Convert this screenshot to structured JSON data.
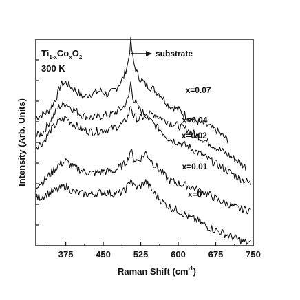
{
  "chart_data": {
    "type": "line",
    "xlabel": "Raman Shift (cm",
    "xlabel_unit_sup": "-1",
    "xlabel_close": ")",
    "ylabel": "Intensity (Arb. Units)",
    "xlim": [
      315,
      750
    ],
    "ylim": [
      0,
      10
    ],
    "x_ticks": [
      375,
      450,
      525,
      600,
      675,
      750
    ],
    "x_tick_labels": [
      "375",
      "450",
      "525",
      "600",
      "675",
      "750"
    ],
    "y_tick_labels_shown": false,
    "grid": false,
    "annotations": {
      "compound_main": "Ti",
      "compound_sub1": "1-x",
      "compound_co": "Co",
      "compound_sub2": "x",
      "compound_o": "O",
      "compound_sub3": "2",
      "temperature": "300 K",
      "substrate_label": "substrate"
    },
    "substrate_peak_x": 505,
    "series": [
      {
        "name": "x=0.07",
        "label_at": [
          640,
          7.4
        ],
        "points": [
          [
            315,
            6.2
          ],
          [
            340,
            6.5
          ],
          [
            355,
            7.1
          ],
          [
            365,
            7.8
          ],
          [
            375,
            7.9
          ],
          [
            390,
            7.6
          ],
          [
            410,
            7.2
          ],
          [
            430,
            7.4
          ],
          [
            445,
            7.5
          ],
          [
            460,
            7.3
          ],
          [
            475,
            7.6
          ],
          [
            490,
            8.1
          ],
          [
            500,
            8.9
          ],
          [
            505,
            9.9
          ],
          [
            510,
            8.9
          ],
          [
            520,
            8.2
          ],
          [
            535,
            7.8
          ],
          [
            550,
            7.6
          ],
          [
            565,
            7.3
          ],
          [
            580,
            6.8
          ],
          [
            600,
            6.6
          ],
          [
            620,
            6.2
          ],
          [
            640,
            6.0
          ],
          [
            660,
            5.8
          ],
          [
            675,
            5.6
          ],
          [
            690,
            5.3
          ],
          [
            700,
            5.1
          ]
        ]
      },
      {
        "name": "x=0.04",
        "label_at": [
          633,
          5.95
        ],
        "points": [
          [
            315,
            5.3
          ],
          [
            330,
            5.5
          ],
          [
            345,
            6.1
          ],
          [
            360,
            6.7
          ],
          [
            375,
            6.9
          ],
          [
            390,
            6.6
          ],
          [
            410,
            6.3
          ],
          [
            430,
            6.2
          ],
          [
            450,
            6.3
          ],
          [
            470,
            6.4
          ],
          [
            490,
            6.7
          ],
          [
            500,
            7.1
          ],
          [
            505,
            7.9
          ],
          [
            510,
            7.1
          ],
          [
            520,
            6.7
          ],
          [
            535,
            6.3
          ],
          [
            550,
            6.4
          ],
          [
            565,
            6.2
          ],
          [
            580,
            6.0
          ],
          [
            600,
            5.8
          ],
          [
            620,
            5.6
          ],
          [
            640,
            5.3
          ],
          [
            660,
            5.0
          ],
          [
            680,
            4.7
          ],
          [
            700,
            4.4
          ],
          [
            720,
            4.1
          ],
          [
            735,
            3.8
          ]
        ]
      },
      {
        "name": "x=0.02",
        "label_at": [
          632,
          5.2
        ],
        "points": [
          [
            315,
            4.8
          ],
          [
            330,
            5.0
          ],
          [
            345,
            5.6
          ],
          [
            360,
            6.0
          ],
          [
            375,
            6.2
          ],
          [
            390,
            5.9
          ],
          [
            410,
            5.6
          ],
          [
            430,
            5.5
          ],
          [
            450,
            5.6
          ],
          [
            470,
            5.7
          ],
          [
            490,
            5.9
          ],
          [
            500,
            6.3
          ],
          [
            505,
            6.8
          ],
          [
            510,
            6.3
          ],
          [
            520,
            6.1
          ],
          [
            535,
            6.3
          ],
          [
            550,
            5.9
          ],
          [
            565,
            5.6
          ],
          [
            580,
            5.2
          ],
          [
            600,
            5.0
          ],
          [
            620,
            4.8
          ],
          [
            640,
            4.5
          ],
          [
            660,
            4.2
          ],
          [
            680,
            3.9
          ],
          [
            700,
            3.6
          ],
          [
            720,
            3.3
          ],
          [
            745,
            3.0
          ]
        ]
      },
      {
        "name": "x=0.01",
        "label_at": [
          633,
          3.7
        ],
        "points": [
          [
            315,
            2.9
          ],
          [
            330,
            3.1
          ],
          [
            345,
            3.5
          ],
          [
            360,
            3.9
          ],
          [
            375,
            4.1
          ],
          [
            390,
            3.8
          ],
          [
            410,
            3.6
          ],
          [
            430,
            3.5
          ],
          [
            450,
            3.6
          ],
          [
            470,
            3.6
          ],
          [
            490,
            3.9
          ],
          [
            500,
            4.2
          ],
          [
            505,
            4.7
          ],
          [
            510,
            4.2
          ],
          [
            520,
            4.1
          ],
          [
            535,
            4.5
          ],
          [
            550,
            4.0
          ],
          [
            565,
            3.6
          ],
          [
            580,
            3.2
          ],
          [
            600,
            3.0
          ],
          [
            620,
            2.9
          ],
          [
            640,
            2.7
          ],
          [
            660,
            2.5
          ],
          [
            680,
            2.2
          ],
          [
            700,
            2.0
          ],
          [
            720,
            1.8
          ],
          [
            745,
            1.7
          ]
        ]
      },
      {
        "name": "x=0",
        "label_at": [
          633,
          2.35
        ],
        "points": [
          [
            315,
            2.3
          ],
          [
            330,
            2.4
          ],
          [
            345,
            2.6
          ],
          [
            360,
            2.7
          ],
          [
            375,
            2.9
          ],
          [
            390,
            2.6
          ],
          [
            410,
            2.5
          ],
          [
            430,
            2.5
          ],
          [
            450,
            2.6
          ],
          [
            470,
            2.5
          ],
          [
            490,
            2.6
          ],
          [
            500,
            2.9
          ],
          [
            505,
            3.3
          ],
          [
            510,
            2.9
          ],
          [
            520,
            2.8
          ],
          [
            535,
            3.1
          ],
          [
            550,
            2.6
          ],
          [
            565,
            2.2
          ],
          [
            580,
            1.9
          ],
          [
            600,
            1.7
          ],
          [
            620,
            1.4
          ],
          [
            640,
            1.2
          ],
          [
            660,
            0.9
          ],
          [
            680,
            0.7
          ],
          [
            700,
            0.5
          ],
          [
            720,
            0.3
          ],
          [
            745,
            0.1
          ]
        ]
      }
    ]
  }
}
